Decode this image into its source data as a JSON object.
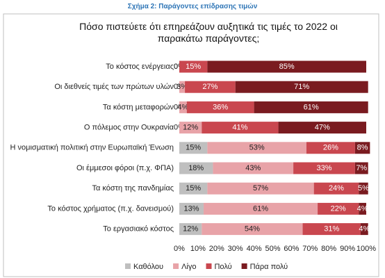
{
  "caption": "Σχήμα 2: Παράγοντες επίδρασης τιμών",
  "chart_data": {
    "type": "stacked-barh",
    "title": "Πόσο πιστεύετε ότι επηρεάζουν αυξητικά τις τιμές το 2022 οι παρακάτω παράγοντες;",
    "categories": [
      "Το κόστος ενέργειας",
      "Οι διεθνείς τιμές των πρώτων υλών",
      "Τα κόστη μεταφορών",
      "Ο πόλεμος στην Ουκρανία",
      "Η νομισματική πολιτική στην Ευρωπαϊκή Ένωση",
      "Οι έμμεσοι φόροι (π.χ. ΦΠΑ)",
      "Τα κόστη της πανδημίας",
      "Το κόστος χρήματος (π.χ. δανεισμού)",
      "Το εργασιακό κόστος"
    ],
    "series": [
      {
        "name": "Καθόλου",
        "color": "#bfbfbf",
        "values": [
          0,
          0,
          0,
          0,
          15,
          18,
          15,
          13,
          12
        ],
        "value_labels": [
          "0%",
          "0%",
          "0%",
          "0%",
          "15%",
          "18%",
          "15%",
          "13%",
          "12%"
        ]
      },
      {
        "name": "Λίγο",
        "color": "#e8a3a8",
        "values": [
          0,
          3,
          4,
          12,
          53,
          43,
          57,
          61,
          54
        ],
        "value_labels": [
          "0%",
          "3%",
          "4%",
          "12%",
          "53%",
          "43%",
          "57%",
          "61%",
          "54%"
        ]
      },
      {
        "name": "Πολύ",
        "color": "#c9474f",
        "values": [
          15,
          27,
          36,
          41,
          26,
          33,
          24,
          22,
          31
        ],
        "value_labels": [
          "15%",
          "27%",
          "36%",
          "41%",
          "26%",
          "33%",
          "24%",
          "22%",
          "31%"
        ]
      },
      {
        "name": "Πάρα πολύ",
        "color": "#7a1b20",
        "values": [
          85,
          71,
          61,
          47,
          8,
          7,
          5,
          4,
          4
        ],
        "value_labels": [
          "85%",
          "71%",
          "61%",
          "47%",
          "8%",
          "7%",
          "5%",
          "4%",
          "4%"
        ]
      }
    ],
    "xlim": [
      0,
      100
    ],
    "xticks": [
      {
        "value": 0,
        "label": "0%"
      },
      {
        "value": 10,
        "label": "10%"
      },
      {
        "value": 20,
        "label": "20%"
      },
      {
        "value": 30,
        "label": "30%"
      },
      {
        "value": 40,
        "label": "40%"
      },
      {
        "value": 50,
        "label": "50%"
      },
      {
        "value": 60,
        "label": "60%"
      },
      {
        "value": 70,
        "label": "70%"
      },
      {
        "value": 80,
        "label": "80%"
      },
      {
        "value": 90,
        "label": "90%"
      },
      {
        "value": 100,
        "label": "100%"
      }
    ],
    "legend": "bottom"
  }
}
